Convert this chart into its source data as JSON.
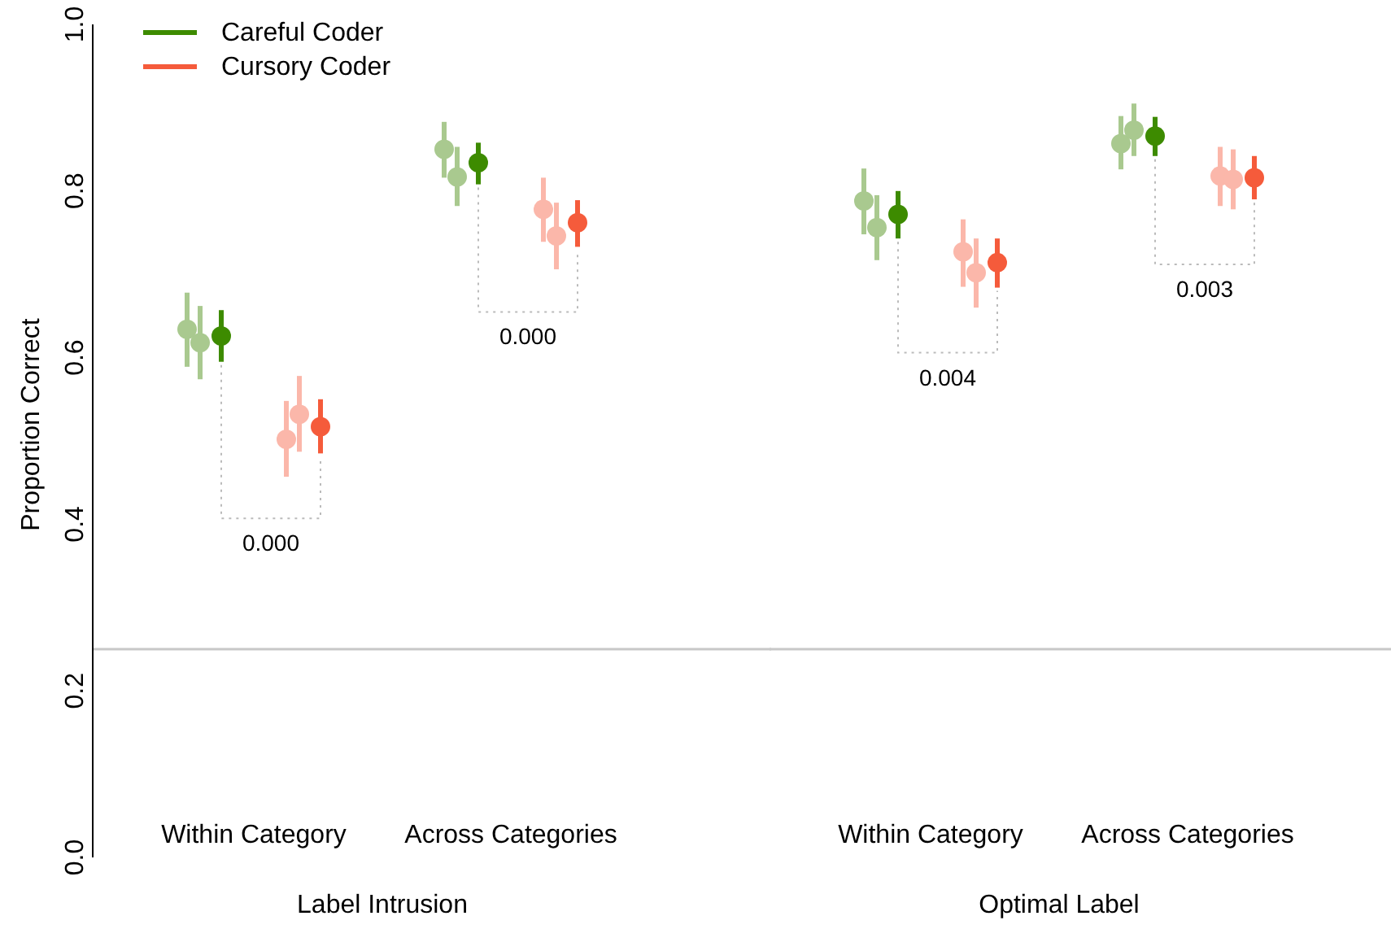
{
  "chart_data": [
    {
      "type": "scatter",
      "ylabel": "Proportion Correct",
      "xlabel": "Label Intrusion",
      "categories": [
        "Within Category",
        "Across Categories"
      ],
      "ylim": [
        0,
        1
      ],
      "yticks": [
        {
          "value": 0,
          "label": "0.0"
        },
        0.2,
        0.4,
        0.6,
        0.8,
        {
          "value": 1,
          "label": "1.0"
        }
      ],
      "marker": "circle",
      "legend": "top left",
      "ref_lines": [
        {
          "axis": "y",
          "value": 0.25,
          "color": "#c8c8c8"
        }
      ],
      "series": [
        {
          "color": "#a9c98f",
          "values": [
            0.634,
            0.85
          ],
          "errors": [
            [
              0.589,
              0.678
            ],
            [
              0.816,
              0.883
            ]
          ]
        },
        {
          "color": "#a9c98f",
          "values": [
            0.618,
            0.817
          ],
          "errors": [
            [
              0.574,
              0.662
            ],
            [
              0.782,
              0.853
            ]
          ]
        },
        {
          "name": "Careful Coder",
          "color": "#3d8b00",
          "values": [
            0.626,
            0.834
          ],
          "errors": [
            [
              0.595,
              0.657
            ],
            [
              0.808,
              0.858
            ]
          ]
        },
        {
          "color": "#fbb7aa",
          "values": [
            0.502,
            0.778
          ],
          "errors": [
            [
              0.457,
              0.548
            ],
            [
              0.739,
              0.816
            ]
          ]
        },
        {
          "color": "#fbb7aa",
          "values": [
            0.532,
            0.746
          ],
          "errors": [
            [
              0.487,
              0.578
            ],
            [
              0.706,
              0.786
            ]
          ]
        },
        {
          "name": "Cursory Coder",
          "color": "#f55b3b",
          "values": [
            0.517,
            0.762
          ],
          "errors": [
            [
              0.485,
              0.55
            ],
            [
              0.733,
              0.789
            ]
          ]
        }
      ],
      "annotations": [
        "0.000",
        "0.000"
      ]
    },
    {
      "type": "scatter",
      "xlabel": "Optimal Label",
      "categories": [
        "Within Category",
        "Across Categories"
      ],
      "ylim": [
        0,
        1
      ],
      "tick_labels": "x",
      "marker": "circle",
      "ref_lines": [
        {
          "axis": "y",
          "value": 0.25,
          "color": "#c8c8c8"
        }
      ],
      "series": [
        {
          "color": "#a9c98f",
          "values": [
            0.788,
            0.857
          ],
          "errors": [
            [
              0.748,
              0.827
            ],
            [
              0.826,
              0.89
            ]
          ]
        },
        {
          "color": "#a9c98f",
          "values": [
            0.756,
            0.873
          ],
          "errors": [
            [
              0.717,
              0.795
            ],
            [
              0.842,
              0.905
            ]
          ]
        },
        {
          "color": "#3d8b00",
          "values": [
            0.772,
            0.866
          ],
          "errors": [
            [
              0.743,
              0.8
            ],
            [
              0.842,
              0.889
            ]
          ]
        },
        {
          "color": "#fbb7aa",
          "values": [
            0.727,
            0.818
          ],
          "errors": [
            [
              0.685,
              0.766
            ],
            [
              0.782,
              0.853
            ]
          ]
        },
        {
          "color": "#fbb7aa",
          "values": [
            0.702,
            0.814
          ],
          "errors": [
            [
              0.66,
              0.743
            ],
            [
              0.778,
              0.85
            ]
          ]
        },
        {
          "color": "#f55b3b",
          "values": [
            0.714,
            0.816
          ],
          "errors": [
            [
              0.684,
              0.743
            ],
            [
              0.79,
              0.842
            ]
          ]
        }
      ],
      "annotations": [
        "0.004",
        "0.003"
      ]
    }
  ]
}
